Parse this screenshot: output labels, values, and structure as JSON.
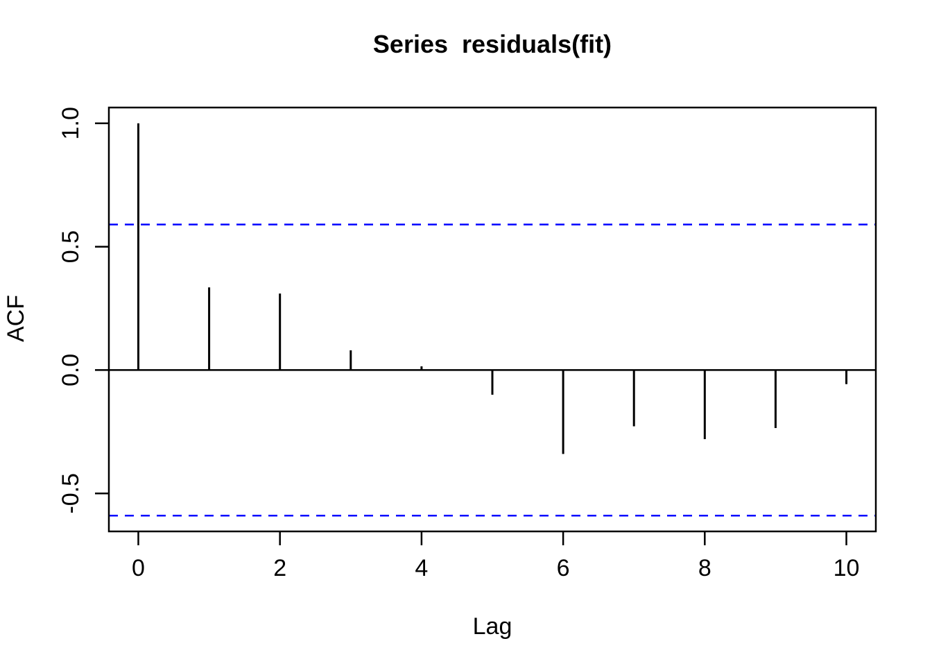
{
  "chart_data": {
    "type": "bar",
    "subtype": "stem-acf",
    "title": "Series  residuals(fit)",
    "xlabel": "Lag",
    "ylabel": "ACF",
    "x": [
      0,
      1,
      2,
      3,
      4,
      5,
      6,
      7,
      8,
      9,
      10
    ],
    "values": [
      1.0,
      0.335,
      0.31,
      0.08,
      0.015,
      -0.1,
      -0.34,
      -0.228,
      -0.28,
      -0.235,
      -0.057
    ],
    "confidence_bounds": {
      "upper": 0.59,
      "lower": -0.59,
      "line_style": "dashed"
    },
    "xlim": [
      -0.416,
      10.416
    ],
    "ylim": [
      -0.654,
      1.064
    ],
    "xticks": {
      "values": [
        0,
        2,
        4,
        6,
        8,
        10
      ],
      "labels": [
        "0",
        "2",
        "4",
        "6",
        "8",
        "10"
      ]
    },
    "yticks": {
      "values": [
        1.0,
        0.5,
        0.0,
        -0.5
      ],
      "labels": [
        "1.0",
        "0.5",
        "0.0",
        "-0.5"
      ]
    },
    "grid": false,
    "legend": null,
    "colors": {
      "spike": "#000000",
      "axis": "#000000",
      "ci_line": "#0000ff",
      "background": "#ffffff"
    }
  }
}
